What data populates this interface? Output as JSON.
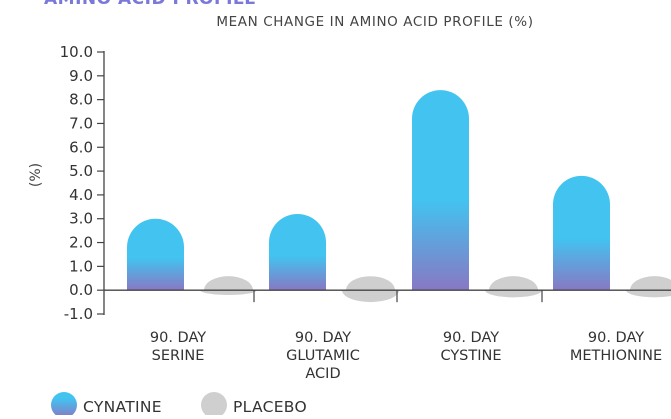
{
  "header": {
    "heading": "AMINO ACID PROFILE",
    "subtitle": "MEAN CHANGE IN AMINO ACID PROFILE (%)"
  },
  "colors": {
    "cynatine_top": "#42c3f0",
    "cynatine_bottom": "#8878c3",
    "placebo": "#cfcfcf",
    "axis": "#444444",
    "heading": "#7a78d8"
  },
  "chart_data": {
    "type": "bar",
    "title": "MEAN CHANGE IN AMINO ACID PROFILE (%)",
    "xlabel": "",
    "ylabel": "(%)",
    "ylim": [
      -1.0,
      10.0
    ],
    "yticks": [
      "10.0",
      "9.0",
      "8.0",
      "7.0",
      "6.0",
      "5.0",
      "4.0",
      "3.0",
      "2.0",
      "1.0",
      "0.0",
      "-1.0"
    ],
    "categories": [
      [
        "90. DAY",
        "SERINE"
      ],
      [
        "90. DAY",
        "GLUTAMIC",
        "ACID"
      ],
      [
        "90. DAY",
        "CYSTINE"
      ],
      [
        "90. DAY",
        "METHIONINE"
      ]
    ],
    "series": [
      {
        "name": "CYNATINE",
        "values": [
          3.0,
          3.2,
          8.4,
          4.8
        ]
      },
      {
        "name": "PLACEBO",
        "values": [
          -0.2,
          -0.5,
          -0.3,
          -0.3
        ]
      }
    ],
    "legend": "bottom-left",
    "grid": false
  }
}
